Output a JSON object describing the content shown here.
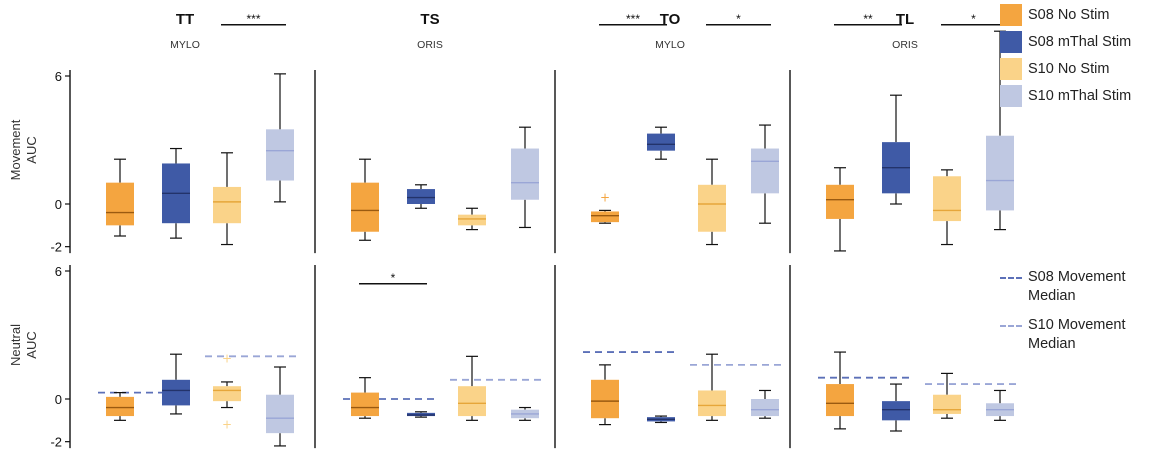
{
  "colors": {
    "s08_nostim": "#F4A540",
    "s08_mthal": "#3F5AA6",
    "s10_nostim": "#FAD389",
    "s10_mthal": "#BFC8E2",
    "median_s08": "#5C70B8",
    "median_s10": "#9AA6D6"
  },
  "legend": {
    "boxes": [
      {
        "label": "S08 No Stim",
        "color": "#F4A540"
      },
      {
        "label": "S08 mThal Stim",
        "color": "#3F5AA6"
      },
      {
        "label": "S10 No Stim",
        "color": "#FAD389"
      },
      {
        "label": "S10 mThal Stim",
        "color": "#BFC8E2"
      }
    ],
    "lines": [
      {
        "label": "S08 Movement Median",
        "color": "#5C70B8"
      },
      {
        "label": "S10 Movement Median",
        "color": "#9AA6D6"
      }
    ]
  },
  "row_labels": [
    "Movement AUC",
    "Neutral AUC"
  ],
  "chart_data": {
    "type": "box",
    "ylim": [
      -2.3,
      6
    ],
    "yticks": [
      6,
      0,
      -2
    ],
    "groups": [
      "S08 No Stim",
      "S08 mThal Stim",
      "S10 No Stim",
      "S10 mThal Stim"
    ],
    "columns": [
      {
        "title": "TT",
        "subtitle": "MYLO"
      },
      {
        "title": "TS",
        "subtitle": "ORIS"
      },
      {
        "title": "TO",
        "subtitle": "MYLO"
      },
      {
        "title": "TL",
        "subtitle": "ORIS"
      }
    ],
    "panels": [
      {
        "row": 0,
        "col": 0,
        "show_ticks": true,
        "boxes": [
          {
            "whislo": -1.5,
            "q1": -1.0,
            "med": -0.4,
            "q3": 1.0,
            "whishi": 2.1,
            "outliers": []
          },
          {
            "whislo": -1.6,
            "q1": -0.9,
            "med": 0.5,
            "q3": 1.9,
            "whishi": 2.6,
            "outliers": []
          },
          {
            "whislo": -1.9,
            "q1": -0.9,
            "med": 0.1,
            "q3": 0.8,
            "whishi": 2.4,
            "outliers": []
          },
          {
            "whislo": 0.1,
            "q1": 1.1,
            "med": 2.5,
            "q3": 3.5,
            "whishi": 6.1,
            "outliers": []
          }
        ],
        "sig": [
          {
            "from": 2,
            "to": 3,
            "label": "***",
            "y": 8.4
          }
        ],
        "medlines": []
      },
      {
        "row": 0,
        "col": 1,
        "show_ticks": false,
        "boxes": [
          {
            "whislo": -1.7,
            "q1": -1.3,
            "med": -0.3,
            "q3": 1.0,
            "whishi": 2.1,
            "outliers": []
          },
          {
            "whislo": -0.2,
            "q1": 0.0,
            "med": 0.3,
            "q3": 0.7,
            "whishi": 0.9,
            "outliers": []
          },
          {
            "whislo": -1.2,
            "q1": -1.0,
            "med": -0.7,
            "q3": -0.5,
            "whishi": -0.2,
            "outliers": []
          },
          {
            "whislo": -1.1,
            "q1": 0.2,
            "med": 1.0,
            "q3": 2.6,
            "whishi": 3.6,
            "outliers": []
          }
        ],
        "sig": [],
        "medlines": []
      },
      {
        "row": 0,
        "col": 2,
        "show_ticks": false,
        "boxes": [
          {
            "whislo": -0.9,
            "q1": -0.85,
            "med": -0.55,
            "q3": -0.35,
            "whishi": -0.3,
            "outliers": [
              0.3
            ]
          },
          {
            "whislo": 2.1,
            "q1": 2.5,
            "med": 2.8,
            "q3": 3.3,
            "whishi": 3.6,
            "outliers": []
          },
          {
            "whislo": -1.9,
            "q1": -1.3,
            "med": 0.0,
            "q3": 0.9,
            "whishi": 2.1,
            "outliers": []
          },
          {
            "whislo": -0.9,
            "q1": 0.5,
            "med": 2.0,
            "q3": 2.6,
            "whishi": 3.7,
            "outliers": []
          }
        ],
        "sig": [
          {
            "from": 0,
            "to": 1,
            "label": "***",
            "y": 8.4
          },
          {
            "from": 2,
            "to": 3,
            "label": "*",
            "y": 8.4
          }
        ],
        "medlines": []
      },
      {
        "row": 0,
        "col": 3,
        "show_ticks": false,
        "boxes": [
          {
            "whislo": -2.2,
            "q1": -0.7,
            "med": 0.2,
            "q3": 0.9,
            "whishi": 1.7,
            "outliers": []
          },
          {
            "whislo": 0.0,
            "q1": 0.5,
            "med": 1.7,
            "q3": 2.9,
            "whishi": 5.1,
            "outliers": []
          },
          {
            "whislo": -1.9,
            "q1": -0.8,
            "med": -0.3,
            "q3": 1.3,
            "whishi": 1.6,
            "outliers": []
          },
          {
            "whislo": -1.2,
            "q1": -0.3,
            "med": 1.1,
            "q3": 3.2,
            "whishi": 8.1,
            "outliers": []
          }
        ],
        "sig": [
          {
            "from": 0,
            "to": 1,
            "label": "**",
            "y": 8.4
          },
          {
            "from": 2,
            "to": 3,
            "label": "*",
            "y": 8.4
          }
        ],
        "medlines": []
      },
      {
        "row": 1,
        "col": 0,
        "show_ticks": true,
        "boxes": [
          {
            "whislo": -1.0,
            "q1": -0.8,
            "med": -0.4,
            "q3": 0.1,
            "whishi": 0.3,
            "outliers": []
          },
          {
            "whislo": -0.7,
            "q1": -0.3,
            "med": 0.4,
            "q3": 0.9,
            "whishi": 2.1,
            "outliers": []
          },
          {
            "whislo": -0.4,
            "q1": -0.1,
            "med": 0.4,
            "q3": 0.6,
            "whishi": 0.8,
            "outliers": [
              1.9,
              -1.2
            ]
          },
          {
            "whislo": -2.2,
            "q1": -1.6,
            "med": -0.9,
            "q3": 0.2,
            "whishi": 1.5,
            "outliers": []
          }
        ],
        "sig": [],
        "medlines": [
          {
            "from": 0,
            "to": 1,
            "value": 0.3,
            "color": "#5C70B8"
          },
          {
            "from": 2,
            "to": 3,
            "value": 2.0,
            "color": "#9AA6D6"
          }
        ]
      },
      {
        "row": 1,
        "col": 1,
        "show_ticks": false,
        "boxes": [
          {
            "whislo": -0.9,
            "q1": -0.8,
            "med": -0.4,
            "q3": 0.3,
            "whishi": 1.0,
            "outliers": []
          },
          {
            "whislo": -0.85,
            "q1": -0.8,
            "med": -0.75,
            "q3": -0.65,
            "whishi": -0.6,
            "outliers": []
          },
          {
            "whislo": -1.0,
            "q1": -0.8,
            "med": -0.2,
            "q3": 0.6,
            "whishi": 2.0,
            "outliers": []
          },
          {
            "whislo": -1.0,
            "q1": -0.9,
            "med": -0.7,
            "q3": -0.5,
            "whishi": -0.4,
            "outliers": []
          }
        ],
        "sig": [
          {
            "from": 0,
            "to": 1,
            "label": "*",
            "y": 5.4
          }
        ],
        "medlines": [
          {
            "from": 0,
            "to": 1,
            "value": 0.0,
            "color": "#5C70B8"
          },
          {
            "from": 2,
            "to": 3,
            "value": 0.9,
            "color": "#9AA6D6"
          }
        ]
      },
      {
        "row": 1,
        "col": 2,
        "show_ticks": false,
        "boxes": [
          {
            "whislo": -1.2,
            "q1": -0.9,
            "med": -0.1,
            "q3": 0.9,
            "whishi": 1.6,
            "outliers": []
          },
          {
            "whislo": -1.1,
            "q1": -1.05,
            "med": -0.95,
            "q3": -0.85,
            "whishi": -0.8,
            "outliers": []
          },
          {
            "whislo": -1.0,
            "q1": -0.8,
            "med": -0.3,
            "q3": 0.4,
            "whishi": 2.1,
            "outliers": []
          },
          {
            "whislo": -0.9,
            "q1": -0.8,
            "med": -0.5,
            "q3": 0.0,
            "whishi": 0.4,
            "outliers": []
          }
        ],
        "sig": [],
        "medlines": [
          {
            "from": 0,
            "to": 1,
            "value": 2.2,
            "color": "#5C70B8"
          },
          {
            "from": 2,
            "to": 3,
            "value": 1.6,
            "color": "#9AA6D6"
          }
        ]
      },
      {
        "row": 1,
        "col": 3,
        "show_ticks": false,
        "boxes": [
          {
            "whislo": -1.4,
            "q1": -0.8,
            "med": -0.2,
            "q3": 0.7,
            "whishi": 2.2,
            "outliers": []
          },
          {
            "whislo": -1.5,
            "q1": -1.0,
            "med": -0.5,
            "q3": -0.1,
            "whishi": 0.7,
            "outliers": []
          },
          {
            "whislo": -0.9,
            "q1": -0.7,
            "med": -0.5,
            "q3": 0.2,
            "whishi": 1.2,
            "outliers": []
          },
          {
            "whislo": -1.0,
            "q1": -0.8,
            "med": -0.5,
            "q3": -0.2,
            "whishi": 0.4,
            "outliers": []
          }
        ],
        "sig": [],
        "medlines": [
          {
            "from": 0,
            "to": 1,
            "value": 1.0,
            "color": "#5C70B8"
          },
          {
            "from": 2,
            "to": 3,
            "value": 0.7,
            "color": "#9AA6D6"
          }
        ]
      }
    ]
  }
}
